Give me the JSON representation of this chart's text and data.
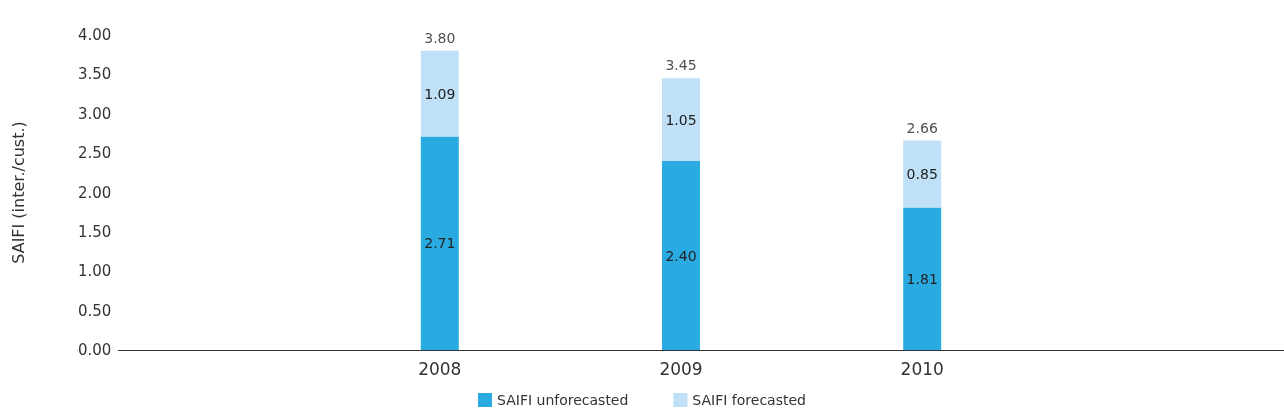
{
  "chart_data": {
    "type": "bar",
    "stacked": true,
    "ylabel": "SAIFI (inter./cust.)",
    "categories": [
      null,
      "2008",
      "2009",
      "2010",
      null
    ],
    "series": [
      {
        "name": "SAIFI unforecasted",
        "color": "#29abe2",
        "values": [
          null,
          2.71,
          2.4,
          1.81,
          null
        ],
        "value_labels": [
          null,
          "2.71",
          "2.40",
          "1.81",
          null
        ]
      },
      {
        "name": "SAIFI forecasted",
        "color": "#bfe0f6",
        "values": [
          null,
          1.09,
          1.05,
          0.85,
          null
        ],
        "value_labels": [
          null,
          "1.09",
          "1.05",
          "0.85",
          null
        ]
      }
    ],
    "totals": [
      null,
      "3.80",
      "3.45",
      "2.66",
      null
    ],
    "ylim": [
      0,
      4
    ],
    "yticks": [
      {
        "value": 0,
        "label": "0.00"
      },
      {
        "value": 0.5,
        "label": "0.50"
      },
      {
        "value": 1,
        "label": "1.00"
      },
      {
        "value": 1.5,
        "label": "1.50"
      },
      {
        "value": 2,
        "label": "2.00"
      },
      {
        "value": 2.5,
        "label": "2.50"
      },
      {
        "value": 3,
        "label": "3.00"
      },
      {
        "value": 3.5,
        "label": "3.50"
      },
      {
        "value": 4,
        "label": "4.00"
      }
    ],
    "grid": false,
    "legend": "bottom"
  }
}
